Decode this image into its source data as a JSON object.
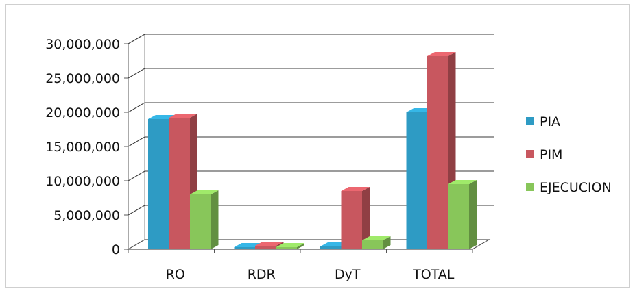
{
  "chart_data": {
    "type": "bar",
    "style": "3d-clustered-column",
    "title": "",
    "xlabel": "",
    "ylabel": "",
    "categories": [
      "RO",
      "RDR",
      "DyT",
      "TOTAL"
    ],
    "series": [
      {
        "name": "PIA",
        "values": [
          19000000,
          300000,
          400000,
          20000000
        ],
        "color": "#2E9BC4"
      },
      {
        "name": "PIM",
        "values": [
          19200000,
          500000,
          8500000,
          28200000
        ],
        "color": "#C8575F"
      },
      {
        "name": "EJECUCION",
        "values": [
          8000000,
          150000,
          1300000,
          9500000
        ],
        "color": "#88C65A"
      }
    ],
    "ylim": [
      0,
      30000000
    ],
    "yticks": [
      0,
      5000000,
      10000000,
      15000000,
      20000000,
      25000000,
      30000000
    ],
    "ytick_labels": [
      "0",
      "5,000,000",
      "10,000,000",
      "15,000,000",
      "20,000,000",
      "25,000,000",
      "30,000,000"
    ],
    "grid": true,
    "legend_position": "right"
  }
}
